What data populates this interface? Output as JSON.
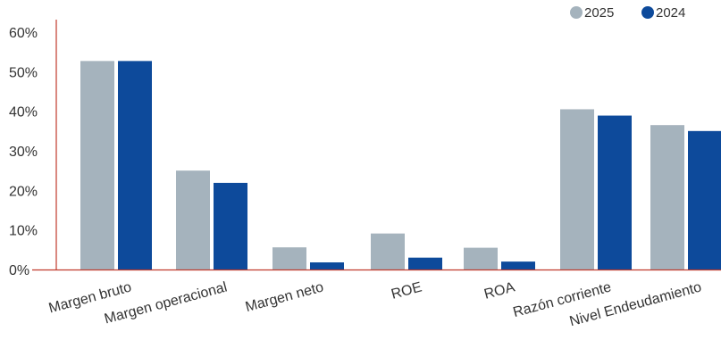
{
  "chart_data": {
    "type": "bar",
    "categories": [
      "Margen bruto",
      "Margen operacional",
      "Margen neto",
      "ROE",
      "ROA",
      "Razón corriente",
      "Nivel Endeudamiento"
    ],
    "series": [
      {
        "name": "2025",
        "color": "#a5b3bd",
        "values": [
          52.7,
          25.0,
          5.6,
          9.1,
          5.5,
          40.5,
          36.5
        ]
      },
      {
        "name": "2024",
        "color": "#0d4a9b",
        "values": [
          52.7,
          21.9,
          1.8,
          3.0,
          2.0,
          38.9,
          35.0
        ]
      }
    ],
    "y_ticks": [
      "0%",
      "10%",
      "20%",
      "30%",
      "40%",
      "50%",
      "60%"
    ],
    "ylim": [
      0,
      62
    ],
    "grid": false,
    "legend_position": "top-right",
    "axis_color": "#c0392b"
  }
}
